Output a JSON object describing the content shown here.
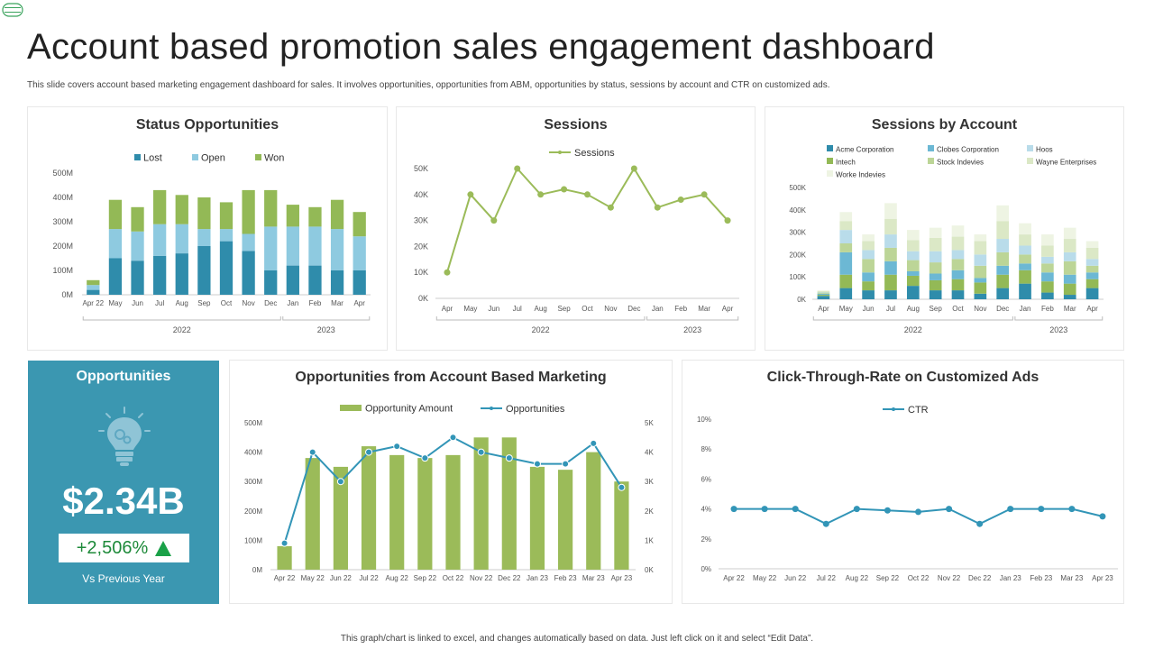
{
  "header": {
    "title": "Account based promotion sales engagement dashboard",
    "subtitle": "This slide covers account based marketing engagement dashboard for sales. It involves opportunities, opportunities from ABM, opportunities by status, sessions by account and CTR on customized ads."
  },
  "colors": {
    "lost": "#2f8cab",
    "open": "#8ecae0",
    "won": "#93b956",
    "teal": "#3b97b1",
    "green": "#9bbb59",
    "line_teal": "#3295b7",
    "up": "#1aa148"
  },
  "chart_data": [
    {
      "id": "status_opportunities",
      "type": "bar",
      "stacked": true,
      "title": "Status Opportunities",
      "categories": [
        "Apr 22",
        "May",
        "Jun",
        "Jul",
        "Aug",
        "Sep",
        "Oct",
        "Nov",
        "Dec",
        "Jan",
        "Feb",
        "Mar",
        "Apr"
      ],
      "groups": [
        {
          "label": "2022",
          "from": 0,
          "to": 8
        },
        {
          "label": "2023",
          "from": 9,
          "to": 12
        }
      ],
      "series": [
        {
          "name": "Lost",
          "values": [
            20,
            150,
            140,
            160,
            170,
            200,
            220,
            180,
            100,
            120,
            120,
            100,
            100
          ]
        },
        {
          "name": "Open",
          "values": [
            20,
            120,
            120,
            130,
            120,
            70,
            50,
            70,
            180,
            160,
            160,
            170,
            140
          ]
        },
        {
          "name": "Won",
          "values": [
            20,
            120,
            100,
            140,
            120,
            130,
            110,
            180,
            150,
            90,
            80,
            120,
            100
          ]
        }
      ],
      "yticks": [
        "0M",
        "100M",
        "200M",
        "300M",
        "400M",
        "500M"
      ],
      "ylim": [
        0,
        500
      ],
      "legend": "top"
    },
    {
      "id": "sessions",
      "type": "line",
      "title": "Sessions",
      "categories": [
        "Apr",
        "May",
        "Jun",
        "Jul",
        "Aug",
        "Sep",
        "Oct",
        "Nov",
        "Dec",
        "Jan",
        "Feb",
        "Mar",
        "Apr"
      ],
      "groups": [
        {
          "label": "2022",
          "from": 0,
          "to": 8
        },
        {
          "label": "2023",
          "from": 9,
          "to": 12
        }
      ],
      "series": [
        {
          "name": "Sessions",
          "values": [
            10000,
            40000,
            30000,
            50000,
            40000,
            42000,
            40000,
            35000,
            50000,
            35000,
            38000,
            40000,
            30000
          ]
        }
      ],
      "yticks": [
        "0K",
        "10K",
        "20K",
        "30K",
        "40K",
        "50K"
      ],
      "ylim": [
        0,
        50000
      ],
      "legend": "top"
    },
    {
      "id": "sessions_by_account",
      "type": "bar",
      "stacked": true,
      "title": "Sessions by Account",
      "categories": [
        "Apr",
        "May",
        "Jun",
        "Jul",
        "Aug",
        "Sep",
        "Oct",
        "Nov",
        "Dec",
        "Jan",
        "Feb",
        "Mar",
        "Apr"
      ],
      "groups": [
        {
          "label": "2022",
          "from": 0,
          "to": 8
        },
        {
          "label": "2023",
          "from": 9,
          "to": 12
        }
      ],
      "series": [
        {
          "name": "Acme Corporation",
          "color": "#2f8cab",
          "values": [
            15,
            50,
            40,
            40,
            60,
            40,
            40,
            25,
            50,
            70,
            30,
            20,
            50
          ]
        },
        {
          "name": "Intech",
          "color": "#93b956",
          "values": [
            5,
            60,
            40,
            70,
            45,
            45,
            50,
            50,
            60,
            60,
            50,
            50,
            40
          ]
        },
        {
          "name": "Clobes Corporation",
          "color": "#6cb8d4",
          "values": [
            5,
            100,
            40,
            60,
            20,
            30,
            40,
            20,
            40,
            30,
            40,
            40,
            30
          ]
        },
        {
          "name": "Stock Indevies",
          "color": "#bcd597",
          "values": [
            5,
            40,
            60,
            60,
            50,
            50,
            50,
            55,
            60,
            40,
            40,
            60,
            30
          ]
        },
        {
          "name": "Hoos",
          "color": "#b9dcea",
          "values": [
            2,
            60,
            40,
            60,
            40,
            50,
            40,
            50,
            60,
            40,
            30,
            40,
            30
          ]
        },
        {
          "name": "Wayne Enterprises",
          "color": "#dbe8c6",
          "values": [
            5,
            40,
            40,
            70,
            50,
            60,
            60,
            60,
            80,
            50,
            50,
            60,
            50
          ]
        },
        {
          "name": "Worke Indevies",
          "color": "#eef4e3",
          "values": [
            3,
            40,
            30,
            70,
            45,
            45,
            50,
            30,
            70,
            50,
            50,
            50,
            30
          ]
        }
      ],
      "yticks": [
        "0K",
        "100K",
        "200K",
        "300K",
        "400K",
        "500K"
      ],
      "ylim": [
        0,
        500
      ],
      "legend": "top"
    },
    {
      "id": "abm_opportunities",
      "type": "bar",
      "title": "Opportunities from Account Based Marketing",
      "categories": [
        "Apr 22",
        "May 22",
        "Jun 22",
        "Jul 22",
        "Aug 22",
        "Sep 22",
        "Oct 22",
        "Nov 22",
        "Dec 22",
        "Jan 23",
        "Feb 23",
        "Mar 23",
        "Apr 23"
      ],
      "series": [
        {
          "name": "Opportunity Amount",
          "axis": "left",
          "values": [
            80,
            380,
            350,
            420,
            390,
            380,
            390,
            450,
            450,
            350,
            340,
            400,
            300
          ]
        },
        {
          "name": "Opportunities",
          "type": "line",
          "axis": "right",
          "values": [
            900,
            4000,
            3000,
            4000,
            4200,
            3800,
            4500,
            4000,
            3800,
            3600,
            3600,
            4300,
            2800
          ]
        }
      ],
      "yticks": [
        "0M",
        "100M",
        "200M",
        "300M",
        "400M",
        "500M"
      ],
      "y2ticks": [
        "0K",
        "1K",
        "2K",
        "3K",
        "4K",
        "5K"
      ],
      "ylim": [
        0,
        500
      ],
      "y2lim": [
        0,
        5000
      ],
      "legend": "top"
    },
    {
      "id": "ctr",
      "type": "line",
      "title": "Click-Through-Rate on Customized Ads",
      "categories": [
        "Apr 22",
        "May 22",
        "Jun 22",
        "Jul 22",
        "Aug 22",
        "Sep 22",
        "Oct 22",
        "Nov 22",
        "Dec 22",
        "Jan 23",
        "Feb 23",
        "Mar 23",
        "Apr 23"
      ],
      "series": [
        {
          "name": "CTR",
          "values": [
            4.0,
            4.0,
            4.0,
            3.0,
            4.0,
            3.9,
            3.8,
            4.0,
            3.0,
            4.0,
            4.0,
            4.0,
            3.5
          ]
        }
      ],
      "yticks": [
        "0%",
        "2%",
        "4%",
        "6%",
        "8%",
        "10%"
      ],
      "ylim": [
        0,
        10
      ],
      "legend": "top"
    }
  ],
  "opportunities": {
    "title": "Opportunities",
    "value": "$2.34B",
    "change": "+2,506%",
    "caption": "Vs Previous Year"
  },
  "footer": "This graph/chart is linked to excel, and changes automatically based on data. Just left click on it and select “Edit Data”."
}
